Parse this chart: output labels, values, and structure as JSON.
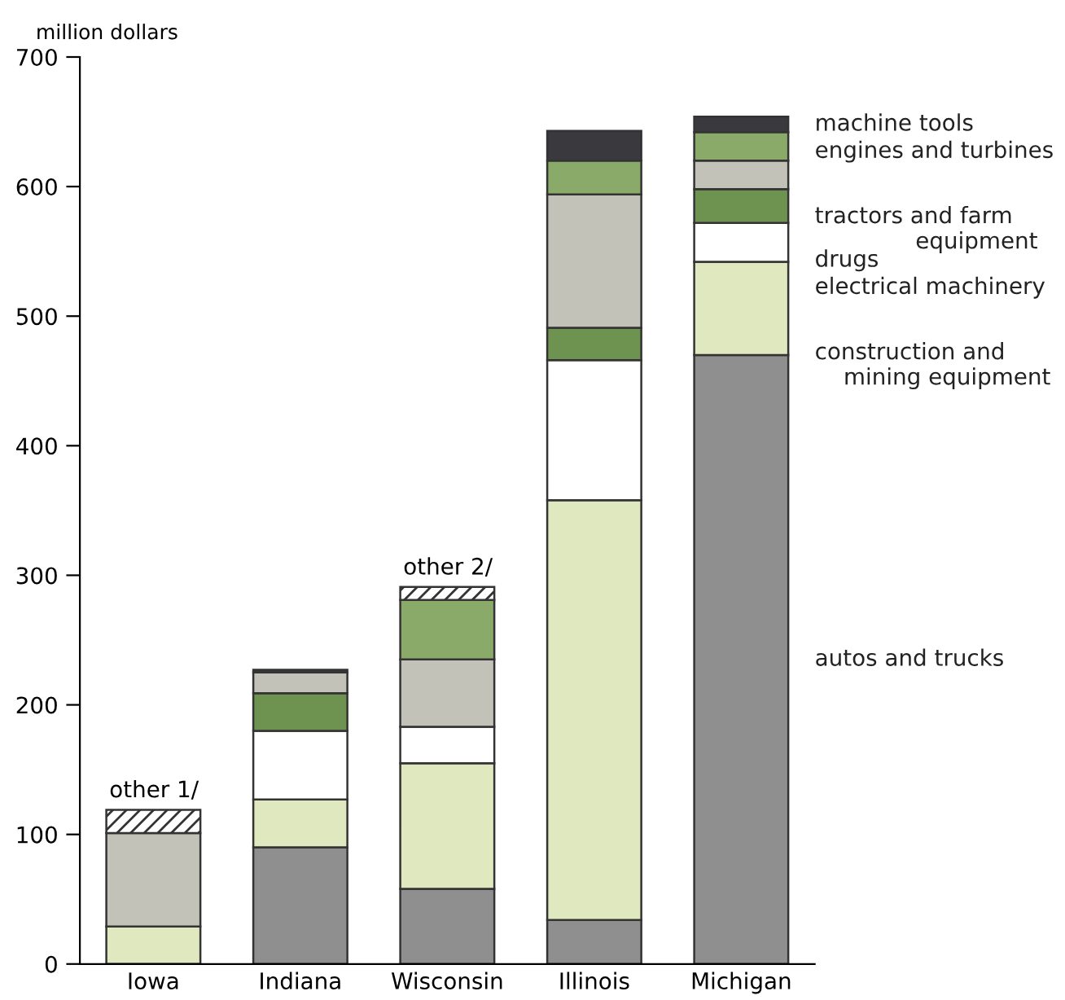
{
  "chart_data": {
    "type": "bar",
    "stacked": true,
    "ylabel": "million dollars",
    "categories": [
      "Iowa",
      "Indiana",
      "Wisconsin",
      "Illinois",
      "Michigan"
    ],
    "series": [
      {
        "name": "autos and trucks",
        "color": "#8f8f8f",
        "values": [
          0,
          90,
          58,
          34,
          470
        ]
      },
      {
        "name": "construction and\n    mining equipment",
        "color": "#dfe8bf",
        "values": [
          29,
          37,
          97,
          324,
          72
        ]
      },
      {
        "name": "electrical machinery",
        "color": "#ffffff",
        "values": [
          0,
          53,
          28,
          108,
          30
        ]
      },
      {
        "name": "drugs",
        "color": "#6e9350",
        "values": [
          0,
          29,
          0,
          25,
          26
        ]
      },
      {
        "name": "tractors and farm\n              equipment",
        "color": "#c2c2b8",
        "values": [
          72,
          16,
          52,
          103,
          22
        ]
      },
      {
        "name": "engines and turbines",
        "color": "#8aaa6a",
        "values": [
          0,
          0,
          46,
          26,
          22
        ]
      },
      {
        "name": "machine tools",
        "color": "#3a3a3e",
        "values": [
          0,
          2,
          0,
          23,
          12
        ]
      },
      {
        "color": "#333333",
        "values": [
          18,
          0,
          10,
          0,
          0
        ]
      }
    ],
    "annotations": [
      {
        "text": "other 1/",
        "x": "Iowa",
        "y": 119
      },
      {
        "text": "other 2/",
        "x": "Wisconsin",
        "y": 291
      }
    ],
    "ylim": [
      0,
      700
    ],
    "yticks": [
      0,
      100,
      200,
      300,
      400,
      500,
      600,
      700
    ],
    "grid": false,
    "legend": false
  }
}
